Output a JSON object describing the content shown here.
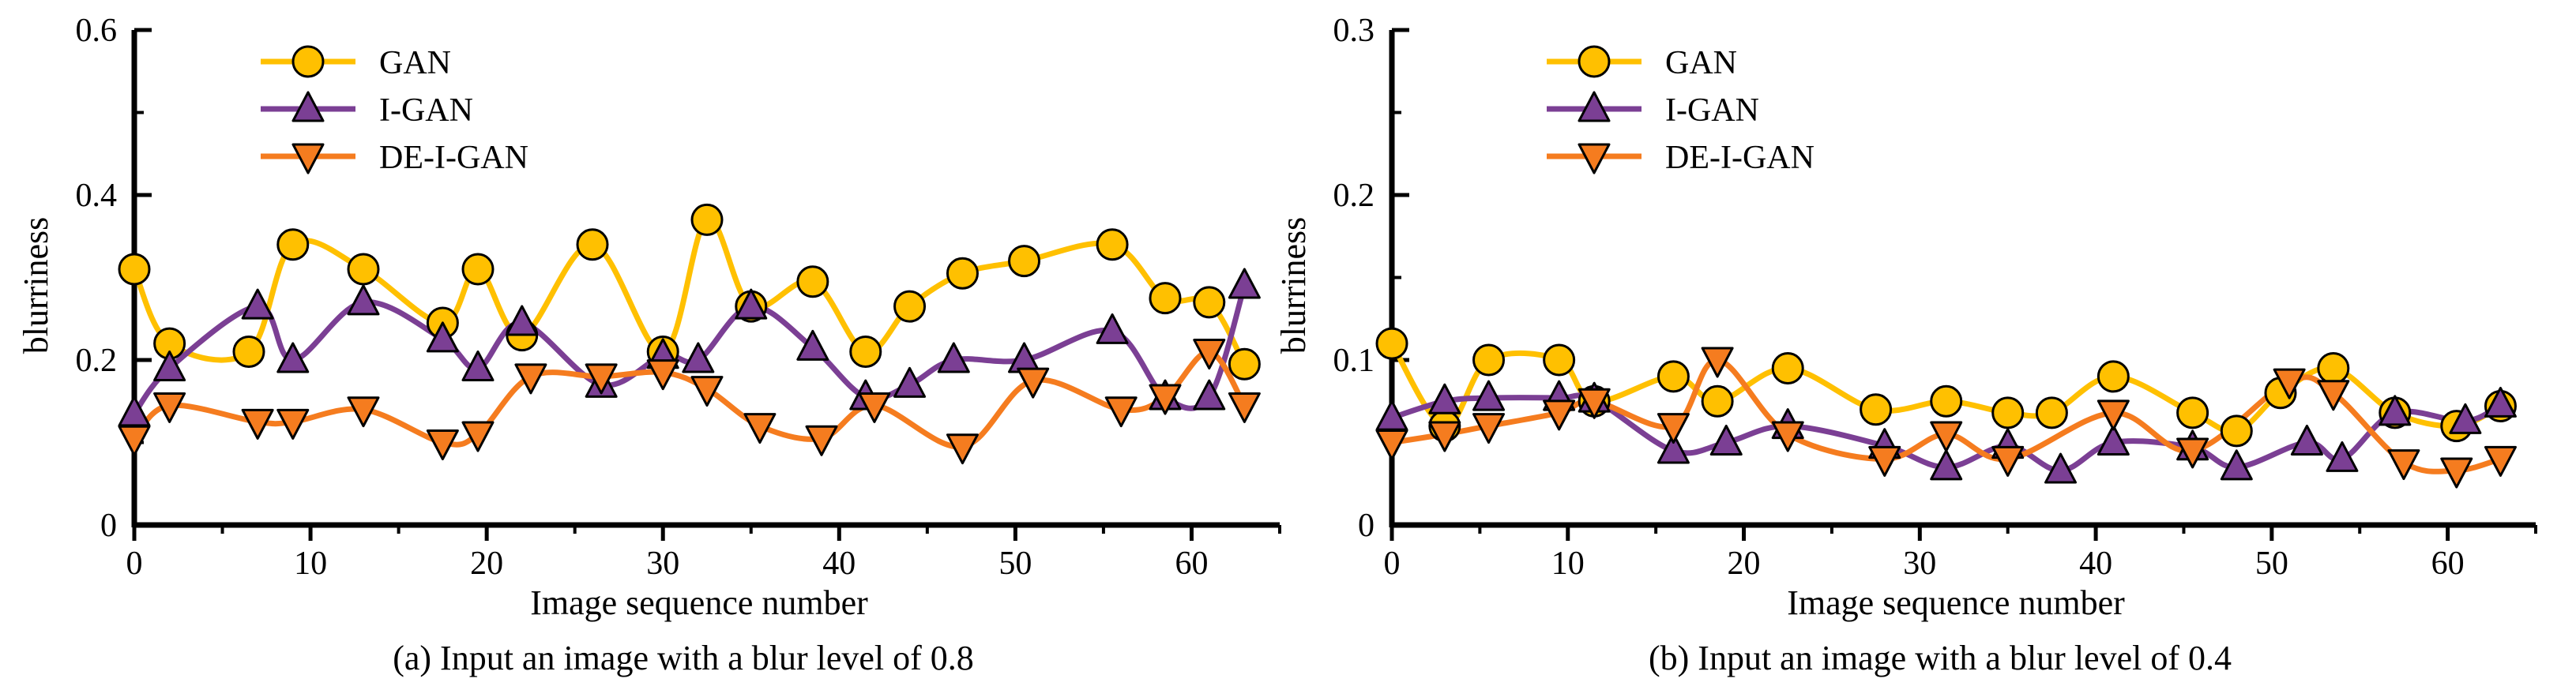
{
  "chart_data": [
    {
      "type": "line",
      "caption": "(a) Input an image with a blur level of 0.8",
      "xlabel": "Image sequence number",
      "ylabel": "blurriness",
      "xlim": [
        0,
        65
      ],
      "ylim": [
        0,
        0.6
      ],
      "xticks": [
        0,
        10,
        20,
        30,
        40,
        50,
        60
      ],
      "yticks": [
        0,
        0.2,
        0.4,
        0.6
      ],
      "ytick_labels": [
        "0",
        "0.2",
        "0.4",
        "0.6"
      ],
      "legend_position": "top-left",
      "series": [
        {
          "name": "GAN",
          "marker": "circle",
          "color": "#FFC000",
          "x": [
            0,
            2,
            6.5,
            9,
            13,
            17.5,
            19.5,
            22,
            26,
            30,
            32.5,
            35,
            38.5,
            41.5,
            44,
            47,
            50.5,
            55.5,
            58.5,
            61,
            63
          ],
          "y": [
            0.31,
            0.22,
            0.21,
            0.34,
            0.31,
            0.245,
            0.31,
            0.23,
            0.34,
            0.21,
            0.37,
            0.265,
            0.295,
            0.21,
            0.265,
            0.305,
            0.32,
            0.34,
            0.275,
            0.27,
            0.195
          ]
        },
        {
          "name": "I-GAN",
          "marker": "triangle-up",
          "color": "#7B3F94",
          "x": [
            0,
            2,
            7,
            9,
            13,
            17.5,
            19.5,
            22,
            26.5,
            30,
            32,
            35,
            38.5,
            41.5,
            44,
            46.5,
            50.5,
            55.5,
            58.5,
            61,
            63
          ],
          "y": [
            0.135,
            0.19,
            0.265,
            0.2,
            0.27,
            0.225,
            0.19,
            0.245,
            0.17,
            0.205,
            0.2,
            0.265,
            0.215,
            0.155,
            0.17,
            0.2,
            0.2,
            0.235,
            0.155,
            0.155,
            0.29
          ]
        },
        {
          "name": "DE-I-GAN",
          "marker": "triangle-down",
          "color": "#F57C1F",
          "x": [
            0,
            2,
            7,
            9,
            13,
            17.5,
            19.5,
            22.5,
            26.5,
            30,
            32.5,
            35.5,
            39,
            42,
            47,
            51,
            56,
            58.5,
            61,
            63
          ],
          "y": [
            0.105,
            0.145,
            0.125,
            0.125,
            0.14,
            0.1,
            0.11,
            0.18,
            0.18,
            0.185,
            0.165,
            0.12,
            0.105,
            0.145,
            0.095,
            0.175,
            0.14,
            0.155,
            0.21,
            0.145
          ]
        }
      ]
    },
    {
      "type": "line",
      "caption": "(b) Input an image with a blur level of 0.4",
      "xlabel": "Image sequence number",
      "ylabel": "blurriness",
      "xlim": [
        0,
        65
      ],
      "ylim": [
        0,
        0.3
      ],
      "xticks": [
        0,
        10,
        20,
        30,
        40,
        50,
        60
      ],
      "yticks": [
        0,
        0.1,
        0.2,
        0.3
      ],
      "ytick_labels": [
        "0",
        "0.1",
        "0.2",
        "0.3"
      ],
      "legend_position": "top-left",
      "series": [
        {
          "name": "GAN",
          "marker": "circle",
          "color": "#FFC000",
          "x": [
            0,
            3,
            5.5,
            9.5,
            11.5,
            16,
            18.5,
            22.5,
            27.5,
            31.5,
            35,
            37.5,
            41,
            45.5,
            48,
            50.5,
            53.5,
            57,
            60.5,
            63
          ],
          "y": [
            0.11,
            0.06,
            0.1,
            0.1,
            0.075,
            0.09,
            0.075,
            0.095,
            0.07,
            0.075,
            0.068,
            0.068,
            0.09,
            0.068,
            0.057,
            0.08,
            0.095,
            0.068,
            0.06,
            0.072
          ]
        },
        {
          "name": "I-GAN",
          "marker": "triangle-up",
          "color": "#7B3F94",
          "x": [
            0,
            3,
            5.5,
            9.5,
            11.5,
            16,
            19,
            22.5,
            28,
            31.5,
            35,
            38,
            41,
            45.5,
            48,
            52,
            54,
            57,
            61,
            63
          ],
          "y": [
            0.065,
            0.075,
            0.077,
            0.077,
            0.076,
            0.045,
            0.05,
            0.06,
            0.048,
            0.035,
            0.048,
            0.033,
            0.05,
            0.047,
            0.035,
            0.05,
            0.04,
            0.068,
            0.063,
            0.073
          ]
        },
        {
          "name": "DE-I-GAN",
          "marker": "triangle-down",
          "color": "#F57C1F",
          "x": [
            0,
            3,
            5.5,
            9.5,
            11.5,
            16,
            18.5,
            22.5,
            28,
            31.5,
            35,
            41,
            45.5,
            51,
            53.5,
            57.5,
            60.5,
            63
          ],
          "y": [
            0.05,
            0.055,
            0.06,
            0.068,
            0.075,
            0.06,
            0.1,
            0.055,
            0.04,
            0.055,
            0.04,
            0.068,
            0.045,
            0.087,
            0.08,
            0.038,
            0.033,
            0.04
          ]
        }
      ]
    }
  ]
}
